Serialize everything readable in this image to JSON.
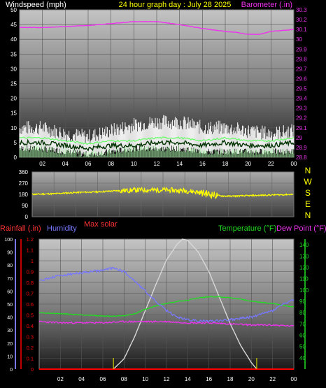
{
  "panels": {
    "wind": {
      "left_title": "Windspeed (mph)",
      "center_title": "24 hour graph day : July 28 2025",
      "right_title": "Barometer (.in)"
    },
    "direction": {
      "right_letters": [
        "N",
        "W",
        "S",
        "E",
        "N"
      ]
    },
    "weather": {
      "rain_label": "Rainfall (.in)",
      "humidity_label": "Humidity",
      "solar_label": "Max solar",
      "temp_label": "Temperature (°F)",
      "dew_label": "Dew Point (°F)"
    }
  },
  "colors": {
    "wind": "#ffffff",
    "wind_avg": "#22cc22",
    "gust": "#66ff66",
    "barometer": "#ee33ee",
    "direction": "#ffff00",
    "rain": "#ff0000",
    "humidity": "#7777ff",
    "solar": "#d8d8d8",
    "temperature": "#22dd22",
    "dewpoint": "#ee33ee",
    "temp_axis": "#22dd22",
    "white_text": "#ffffff",
    "yellow_text": "#ffff00",
    "sun_marker": "#cccc00"
  },
  "chart_data": [
    {
      "type": "line",
      "title": "24 hour graph day : July 28 2025",
      "ylabel": "Windspeed (mph)",
      "ylabel_right": "Barometer (.in)",
      "x_ticks": [
        "02",
        "04",
        "06",
        "08",
        "10",
        "12",
        "14",
        "16",
        "18",
        "20",
        "22",
        "00"
      ],
      "xlim": [
        0,
        24
      ],
      "y_ticks": [
        0,
        5,
        10,
        15,
        20,
        25,
        30,
        35,
        40,
        45,
        50
      ],
      "ylim": [
        0,
        50
      ],
      "y2_ticks": [
        "28.8",
        "28.9",
        "29",
        "29.1",
        "29.2",
        "29.3",
        "29.4",
        "29.5",
        "29.6",
        "29.7",
        "29.8",
        "29.9",
        "30",
        "30.1",
        "30.2",
        "30.3"
      ],
      "y2lim": [
        28.8,
        30.3
      ],
      "series": [
        {
          "key": "barometer",
          "x": [
            0,
            2,
            4,
            6,
            8,
            10,
            11,
            12,
            14,
            16,
            18,
            19,
            20,
            21,
            22,
            23,
            24
          ],
          "y": [
            30.12,
            30.12,
            30.13,
            30.14,
            30.16,
            30.18,
            30.18,
            30.18,
            30.15,
            30.11,
            30.08,
            30.07,
            30.05,
            30.05,
            30.08,
            30.09,
            30.1
          ]
        },
        {
          "key": "wind_high",
          "x": [
            0,
            2,
            4,
            6,
            8,
            10,
            12,
            14,
            16,
            18,
            20,
            22,
            24
          ],
          "y": [
            9,
            9,
            7,
            6,
            8,
            10,
            11,
            11,
            9,
            9,
            8,
            7,
            8
          ]
        },
        {
          "key": "wind_avg",
          "x": [
            0,
            2,
            4,
            6,
            8,
            10,
            12,
            14,
            16,
            18,
            20,
            22,
            24
          ],
          "y": [
            5,
            5,
            4,
            3,
            4,
            4,
            5,
            5,
            4,
            5,
            4,
            4,
            5
          ]
        },
        {
          "key": "wind_low",
          "x": [
            0,
            2,
            4,
            6,
            8,
            10,
            12,
            14,
            16,
            18,
            20,
            22,
            24
          ],
          "y": [
            3,
            3,
            2,
            1,
            2,
            3,
            3,
            3,
            2,
            2,
            2,
            2,
            2
          ]
        }
      ]
    },
    {
      "type": "line",
      "x_ticks": [
        "02",
        "04",
        "06",
        "08",
        "10",
        "12",
        "14",
        "16",
        "18",
        "20",
        "22",
        "00"
      ],
      "xlim": [
        0,
        24
      ],
      "y_ticks": [
        0,
        90,
        180,
        270,
        360
      ],
      "ylim": [
        0,
        360
      ],
      "series": [
        {
          "key": "direction",
          "x": [
            0,
            2,
            4,
            6,
            8,
            10,
            12,
            14,
            15,
            16,
            17,
            18,
            20,
            22,
            24
          ],
          "y": [
            180,
            185,
            195,
            200,
            210,
            215,
            215,
            210,
            200,
            185,
            170,
            165,
            170,
            175,
            180
          ]
        }
      ]
    },
    {
      "type": "line",
      "x_ticks": [
        "02",
        "04",
        "06",
        "08",
        "10",
        "12",
        "14",
        "16",
        "18",
        "20",
        "22",
        "00"
      ],
      "xlim": [
        0,
        24
      ],
      "y_left_humidity": [
        0,
        10,
        20,
        30,
        40,
        50,
        60,
        70,
        80,
        90,
        100
      ],
      "y_left_rain": [
        "0",
        "0.1",
        "0.2",
        "0.3",
        "0.4",
        "0.5",
        "0.6",
        "0.7",
        "0.8",
        "0.9",
        "1",
        "1.1",
        "1.2"
      ],
      "y_right_temp": [
        40,
        50,
        60,
        70,
        80,
        90,
        100,
        110,
        120,
        130,
        140
      ],
      "ylim_temp": [
        30,
        145
      ],
      "sun_markers": [
        7,
        20.5
      ],
      "series": [
        {
          "key": "humidity",
          "x": [
            0,
            2,
            4,
            6,
            7,
            8,
            9,
            10,
            11,
            12,
            13,
            14,
            15,
            16,
            18,
            20,
            22,
            23,
            24
          ],
          "y": [
            68,
            72,
            74,
            76,
            78,
            75,
            68,
            60,
            52,
            45,
            40,
            38,
            37,
            37,
            38,
            40,
            45,
            50,
            53
          ]
        },
        {
          "key": "temperature",
          "x": [
            0,
            2,
            4,
            6,
            8,
            9,
            10,
            11,
            12,
            13,
            14,
            15,
            16,
            17,
            18,
            19,
            20,
            22,
            24
          ],
          "y": [
            80,
            79,
            78,
            77,
            77,
            79,
            83,
            86,
            88,
            90,
            91,
            93,
            94,
            94,
            93,
            92,
            90,
            88,
            85
          ]
        },
        {
          "key": "dewpoint",
          "x": [
            0,
            2,
            4,
            6,
            8,
            10,
            12,
            14,
            16,
            18,
            20,
            22,
            24
          ],
          "y": [
            72,
            71,
            71,
            71,
            72,
            72,
            72,
            71,
            71,
            70,
            69,
            69,
            68
          ]
        },
        {
          "key": "solar",
          "x": [
            7,
            8,
            9,
            10,
            11,
            12,
            13,
            13.5,
            14,
            15,
            16,
            17,
            18,
            19,
            20,
            20.5
          ],
          "y": [
            0,
            8,
            25,
            45,
            65,
            84,
            96,
            100,
            99,
            90,
            75,
            55,
            35,
            18,
            5,
            0
          ]
        },
        {
          "key": "rainfall",
          "x": [
            0,
            24
          ],
          "y": [
            0,
            0
          ]
        }
      ]
    }
  ]
}
